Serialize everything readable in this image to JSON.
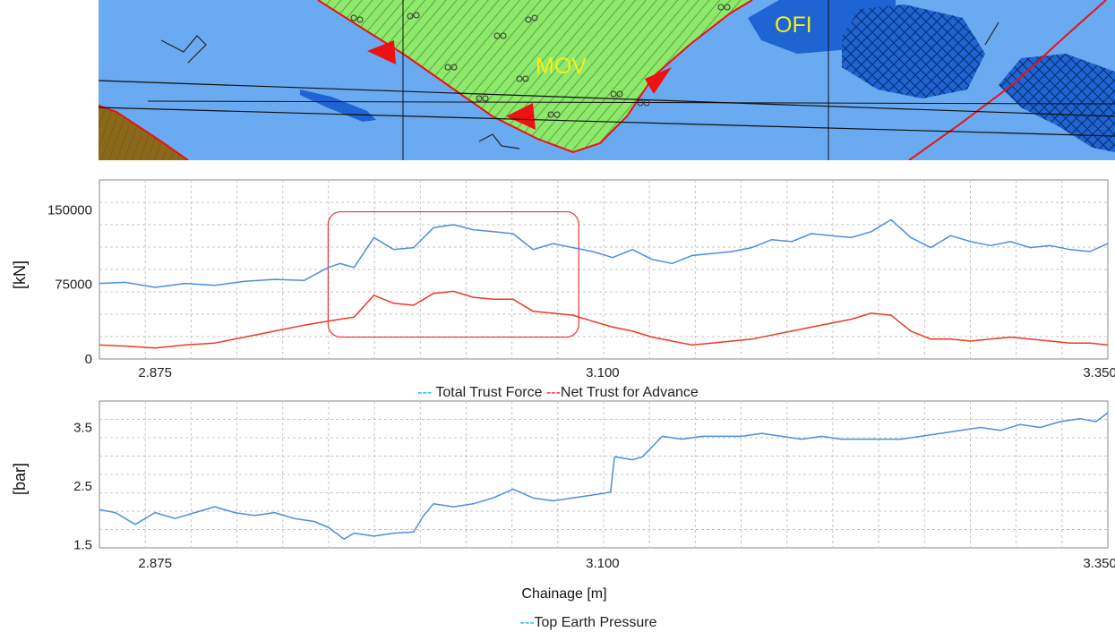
{
  "geology_map": {
    "labels": [
      "MOV",
      "OFI"
    ],
    "colors": {
      "water": "#6aaaf0",
      "unit_mov": "#8ee86a",
      "unit_ofi": "#1e64d2",
      "unit_brown": "#8a6a1a",
      "fault": "#ee1111",
      "line": "#111111"
    }
  },
  "chart_data": [
    {
      "type": "line",
      "title": "",
      "xlabel": "",
      "ylabel": "[kN]",
      "x_tick_labels": [
        "2.875",
        "3.100",
        "3.350"
      ],
      "x_ticks": [
        2875,
        3100,
        3350
      ],
      "xlim": [
        2847,
        3354
      ],
      "y_ticks": [
        0,
        75000,
        150000
      ],
      "y_tick_labels": [
        "0",
        "75000",
        "150000"
      ],
      "ylim": [
        0,
        180000
      ],
      "grid": true,
      "legend": {
        "placement": "bottom-center",
        "entries": [
          {
            "prefix": "---",
            "label": " Total Trust Force ",
            "color": "#00a8e8"
          },
          {
            "prefix": "---",
            "label": "Net Trust for Advance",
            "color": "#ee1111"
          }
        ]
      },
      "highlight": {
        "x_range": [
          2962,
          3088
        ],
        "y_range": [
          22000,
          148000
        ],
        "color": "#ee3333"
      },
      "x": [
        2847,
        2860,
        2875,
        2890,
        2905,
        2920,
        2935,
        2950,
        2962,
        2968,
        2975,
        2985,
        2995,
        3005,
        3015,
        3025,
        3035,
        3045,
        3055,
        3065,
        3075,
        3085,
        3095,
        3105,
        3115,
        3125,
        3135,
        3145,
        3155,
        3165,
        3175,
        3185,
        3195,
        3205,
        3215,
        3225,
        3235,
        3245,
        3255,
        3265,
        3275,
        3285,
        3295,
        3305,
        3315,
        3325,
        3335,
        3345,
        3354
      ],
      "series": [
        {
          "name": "Total Trust Force",
          "color": "#4a8fe0",
          "values": [
            76000,
            77000,
            72000,
            76000,
            74000,
            78000,
            80000,
            79000,
            92000,
            96000,
            92000,
            122000,
            110000,
            112000,
            132000,
            135000,
            130000,
            128000,
            126000,
            110000,
            116000,
            112000,
            108000,
            102000,
            110000,
            100000,
            96000,
            104000,
            106000,
            108000,
            112000,
            120000,
            118000,
            126000,
            124000,
            122000,
            128000,
            140000,
            122000,
            112000,
            124000,
            118000,
            114000,
            118000,
            112000,
            114000,
            110000,
            108000,
            116000
          ]
        },
        {
          "name": "Net Trust for Advance",
          "color": "#ee3a1e",
          "values": [
            14000,
            13000,
            11000,
            14000,
            16000,
            22000,
            28000,
            34000,
            38000,
            40000,
            42000,
            64000,
            56000,
            54000,
            66000,
            68000,
            62000,
            60000,
            60000,
            48000,
            46000,
            44000,
            38000,
            32000,
            28000,
            22000,
            18000,
            14000,
            16000,
            18000,
            20000,
            24000,
            28000,
            32000,
            36000,
            40000,
            46000,
            44000,
            28000,
            20000,
            20000,
            18000,
            20000,
            22000,
            20000,
            18000,
            16000,
            16000,
            14000
          ]
        }
      ]
    },
    {
      "type": "line",
      "title": "",
      "xlabel": "Chainage [m]",
      "ylabel": "[bar]",
      "x_tick_labels": [
        "2.875",
        "3.100",
        "3.350"
      ],
      "x_ticks": [
        2875,
        3100,
        3350
      ],
      "xlim": [
        2847,
        3354
      ],
      "y_ticks": [
        1.5,
        2.5,
        3.5
      ],
      "y_tick_labels": [
        "1.5",
        "2.5",
        "3.5"
      ],
      "ylim": [
        1.45,
        3.95
      ],
      "grid": true,
      "legend": {
        "placement": "bottom-center",
        "entries": [
          {
            "prefix": "---",
            "label": "Top Earth Pressure",
            "color": "#00a8e8"
          }
        ]
      },
      "x": [
        2847,
        2855,
        2865,
        2875,
        2885,
        2895,
        2905,
        2915,
        2925,
        2935,
        2945,
        2955,
        2962,
        2970,
        2975,
        2985,
        2995,
        3005,
        3010,
        3015,
        3025,
        3035,
        3045,
        3055,
        3065,
        3075,
        3085,
        3095,
        3104,
        3106,
        3115,
        3120,
        3130,
        3140,
        3150,
        3160,
        3170,
        3180,
        3190,
        3200,
        3210,
        3220,
        3230,
        3240,
        3250,
        3260,
        3270,
        3280,
        3290,
        3300,
        3310,
        3320,
        3330,
        3340,
        3348,
        3354
      ],
      "series": [
        {
          "name": "Top Earth Pressure",
          "color": "#4a8fe0",
          "values": [
            2.1,
            2.05,
            1.85,
            2.05,
            1.95,
            2.05,
            2.15,
            2.05,
            2.0,
            2.05,
            1.95,
            1.9,
            1.8,
            1.6,
            1.7,
            1.65,
            1.7,
            1.72,
            2.0,
            2.2,
            2.15,
            2.2,
            2.3,
            2.45,
            2.3,
            2.25,
            2.3,
            2.35,
            2.4,
            3.0,
            2.95,
            3.0,
            3.35,
            3.3,
            3.35,
            3.35,
            3.35,
            3.4,
            3.35,
            3.3,
            3.35,
            3.3,
            3.3,
            3.3,
            3.3,
            3.35,
            3.4,
            3.45,
            3.5,
            3.45,
            3.55,
            3.5,
            3.6,
            3.65,
            3.6,
            3.75
          ]
        }
      ]
    }
  ]
}
